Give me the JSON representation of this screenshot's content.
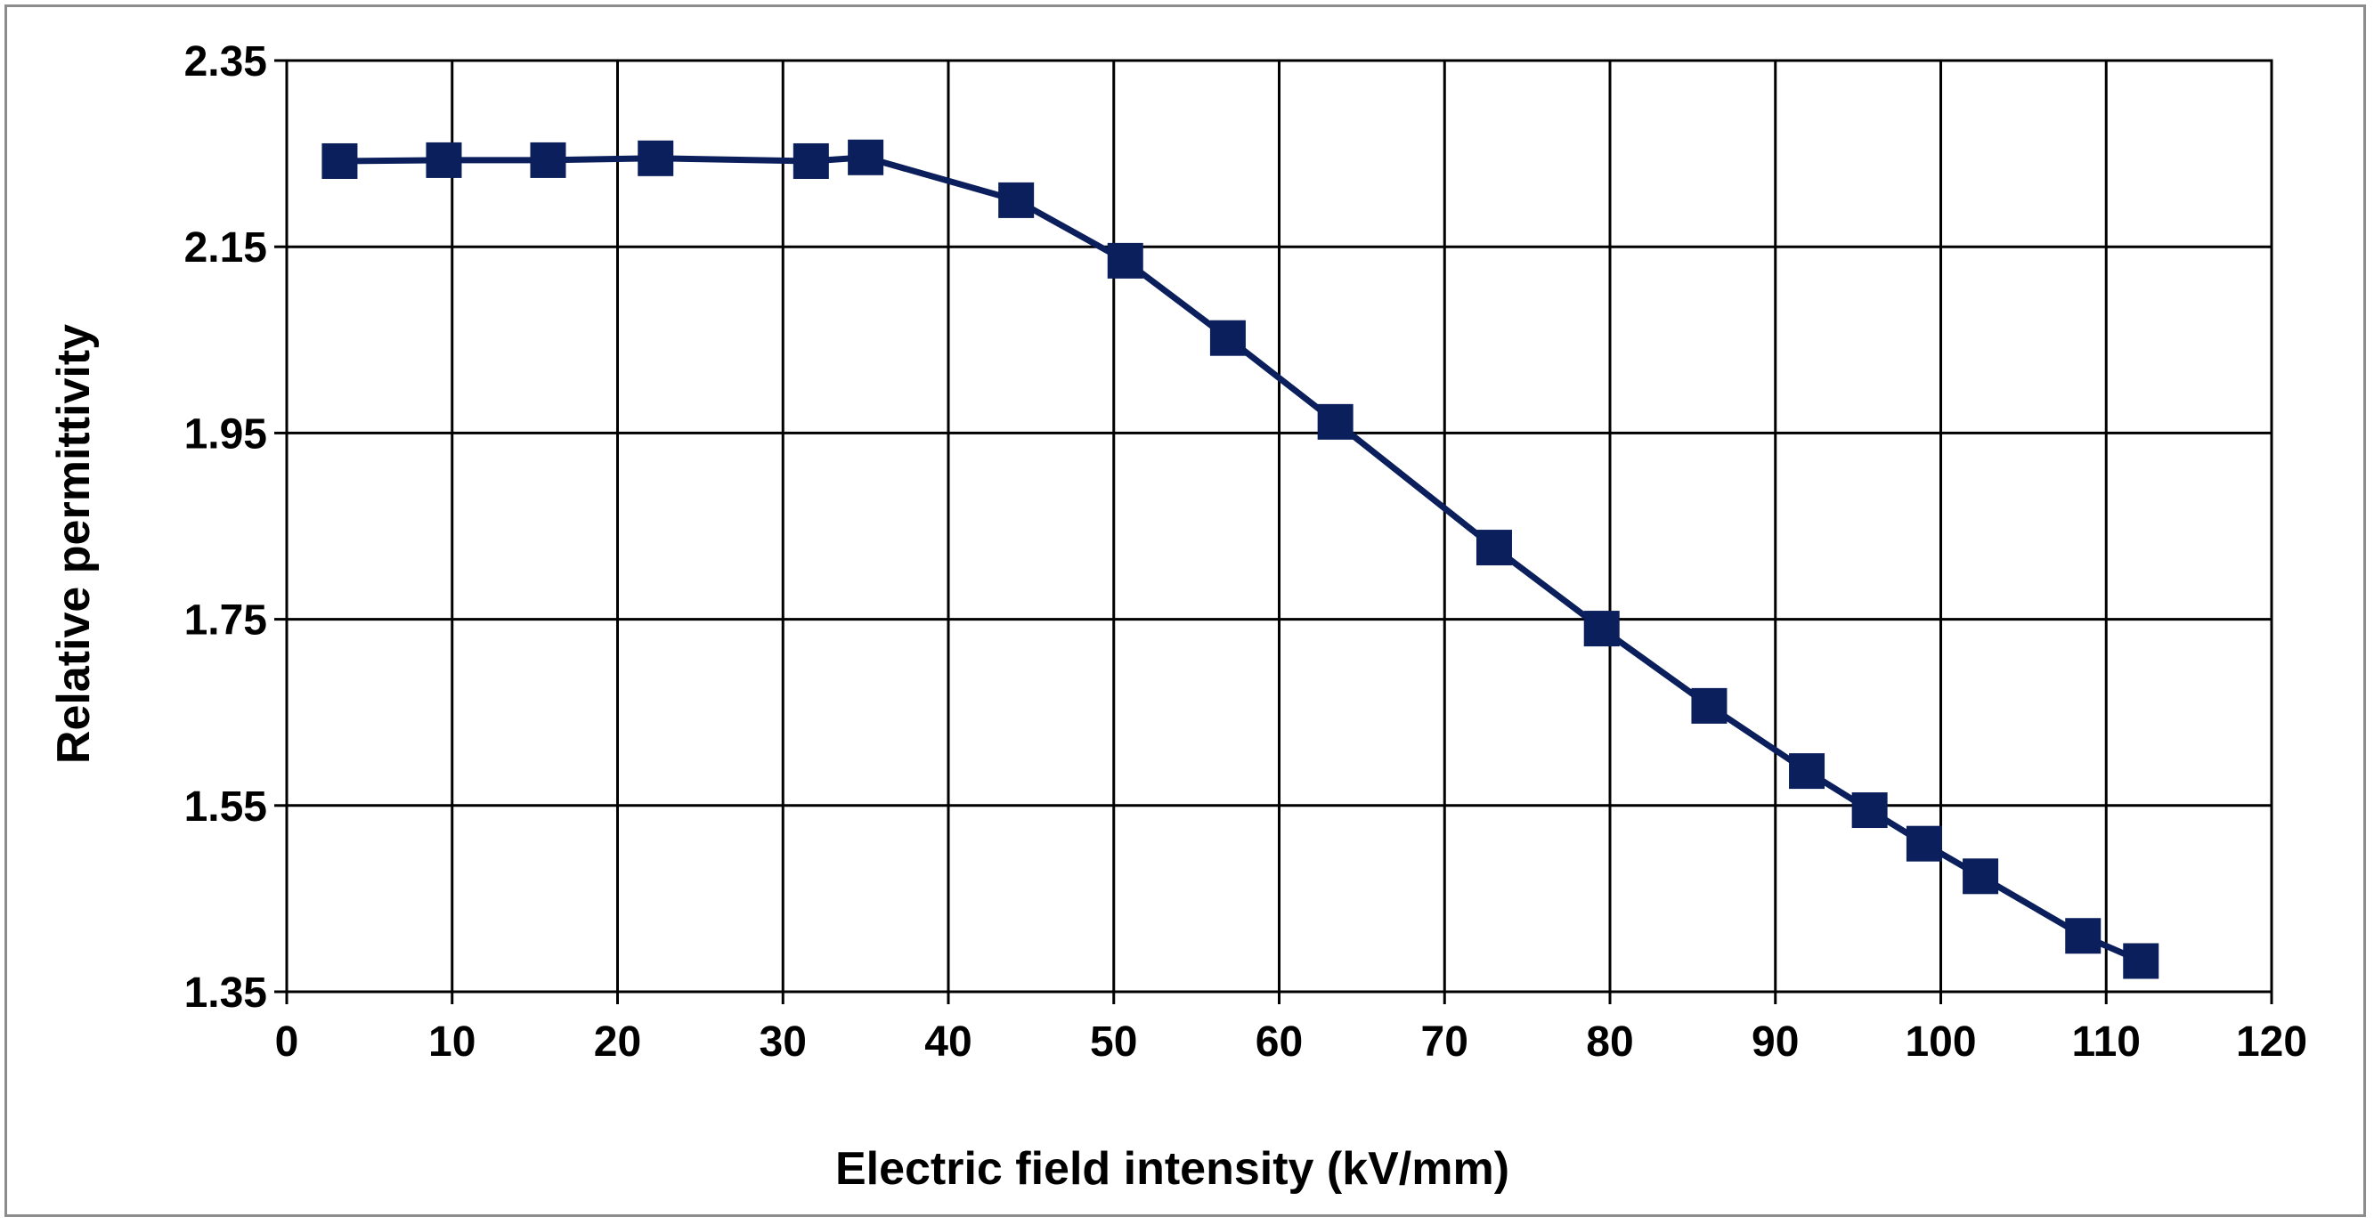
{
  "chart_data": {
    "type": "line",
    "title": "",
    "xlabel": "Electric field intensity (kV/mm)",
    "ylabel": "Relative permittivity",
    "xlim": [
      0,
      120
    ],
    "ylim": [
      1.35,
      2.35
    ],
    "xticks": [
      0,
      10,
      20,
      30,
      40,
      50,
      60,
      70,
      80,
      90,
      100,
      110,
      120
    ],
    "xtick_labels": [
      "0",
      "10",
      "20",
      "30",
      "40",
      "50",
      "60",
      "70",
      "80",
      "90",
      "100",
      "110",
      "120"
    ],
    "yticks": [
      1.35,
      1.55,
      1.75,
      1.95,
      2.15,
      2.35
    ],
    "ytick_labels": [
      "1.35",
      "1.55",
      "1.75",
      "1.95",
      "2.15",
      "2.35"
    ],
    "grid": true,
    "legend": "none",
    "series": [
      {
        "marker": "square",
        "color": "#0b1f5c",
        "x": [
          3.2,
          9.5,
          15.8,
          22.3,
          31.7,
          35.0,
          44.1,
          50.7,
          56.9,
          63.4,
          73.0,
          79.5,
          86.0,
          91.9,
          95.7,
          99.0,
          102.4,
          108.6,
          112.1
        ],
        "y": [
          2.242,
          2.243,
          2.243,
          2.245,
          2.242,
          2.246,
          2.2,
          2.135,
          2.052,
          1.962,
          1.827,
          1.74,
          1.657,
          1.587,
          1.545,
          1.509,
          1.474,
          1.41,
          1.383
        ]
      }
    ]
  }
}
